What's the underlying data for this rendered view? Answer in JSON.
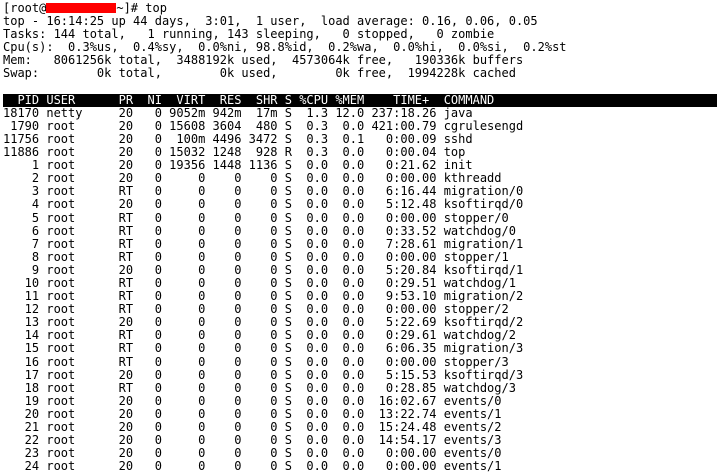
{
  "colors": {
    "background": "#ffffff",
    "text": "#000000",
    "header_bg": "#000000",
    "header_text": "#ffffff",
    "redaction": "#ff0000"
  },
  "prompt": {
    "prefix": "[root@",
    "suffix": "~]# top"
  },
  "summary": {
    "line1": "top - 16:14:25 up 44 days,  3:01,  1 user,  load average: 0.16, 0.06, 0.05",
    "line2": "Tasks: 144 total,   1 running, 143 sleeping,   0 stopped,   0 zombie",
    "line3": "Cpu(s):  0.3%us,  0.4%sy,  0.0%ni, 98.8%id,  0.2%wa,  0.0%hi,  0.0%si,  0.2%st",
    "line4": "Mem:   8061256k total,  3488192k used,  4573064k free,   190336k buffers",
    "line5": "Swap:        0k total,        0k used,        0k free,  1994228k cached"
  },
  "table": {
    "header": "  PID USER      PR  NI  VIRT  RES  SHR S %CPU %MEM    TIME+  COMMAND",
    "rows": [
      "18170 netty     20   0 9052m 942m  17m S  1.3 12.0 237:18.26 java",
      " 1790 root      20   0 15608 3604  480 S  0.3  0.0 421:00.79 cgrulesengd",
      "11756 root      20   0  100m 4496 3472 S  0.3  0.1   0:00.09 sshd",
      "11886 root      20   0 15032 1248  928 R  0.3  0.0   0:00.04 top",
      "    1 root      20   0 19356 1448 1136 S  0.0  0.0   0:21.62 init",
      "    2 root      20   0     0    0    0 S  0.0  0.0   0:00.00 kthreadd",
      "    3 root      RT   0     0    0    0 S  0.0  0.0   6:16.44 migration/0",
      "    4 root      20   0     0    0    0 S  0.0  0.0   5:12.48 ksoftirqd/0",
      "    5 root      RT   0     0    0    0 S  0.0  0.0   0:00.00 stopper/0",
      "    6 root      RT   0     0    0    0 S  0.0  0.0   0:33.52 watchdog/0",
      "    7 root      RT   0     0    0    0 S  0.0  0.0   7:28.61 migration/1",
      "    8 root      RT   0     0    0    0 S  0.0  0.0   0:00.00 stopper/1",
      "    9 root      20   0     0    0    0 S  0.0  0.0   5:20.84 ksoftirqd/1",
      "   10 root      RT   0     0    0    0 S  0.0  0.0   0:29.51 watchdog/1",
      "   11 root      RT   0     0    0    0 S  0.0  0.0   9:53.10 migration/2",
      "   12 root      RT   0     0    0    0 S  0.0  0.0   0:00.00 stopper/2",
      "   13 root      20   0     0    0    0 S  0.0  0.0   5:22.69 ksoftirqd/2",
      "   14 root      RT   0     0    0    0 S  0.0  0.0   0:29.61 watchdog/2",
      "   15 root      RT   0     0    0    0 S  0.0  0.0   6:06.35 migration/3",
      "   16 root      RT   0     0    0    0 S  0.0  0.0   0:00.00 stopper/3",
      "   17 root      20   0     0    0    0 S  0.0  0.0   5:15.53 ksoftirqd/3",
      "   18 root      RT   0     0    0    0 S  0.0  0.0   0:28.85 watchdog/3",
      "   19 root      20   0     0    0    0 S  0.0  0.0  16:02.67 events/0",
      "   20 root      20   0     0    0    0 S  0.0  0.0  13:22.74 events/1",
      "   21 root      20   0     0    0    0 S  0.0  0.0  15:24.48 events/2",
      "   22 root      20   0     0    0    0 S  0.0  0.0  14:54.17 events/3",
      "   23 root      20   0     0    0    0 S  0.0  0.0   0:00.00 events/0",
      "   24 root      20   0     0    0    0 S  0.0  0.0   0:00.00 events/1"
    ]
  }
}
